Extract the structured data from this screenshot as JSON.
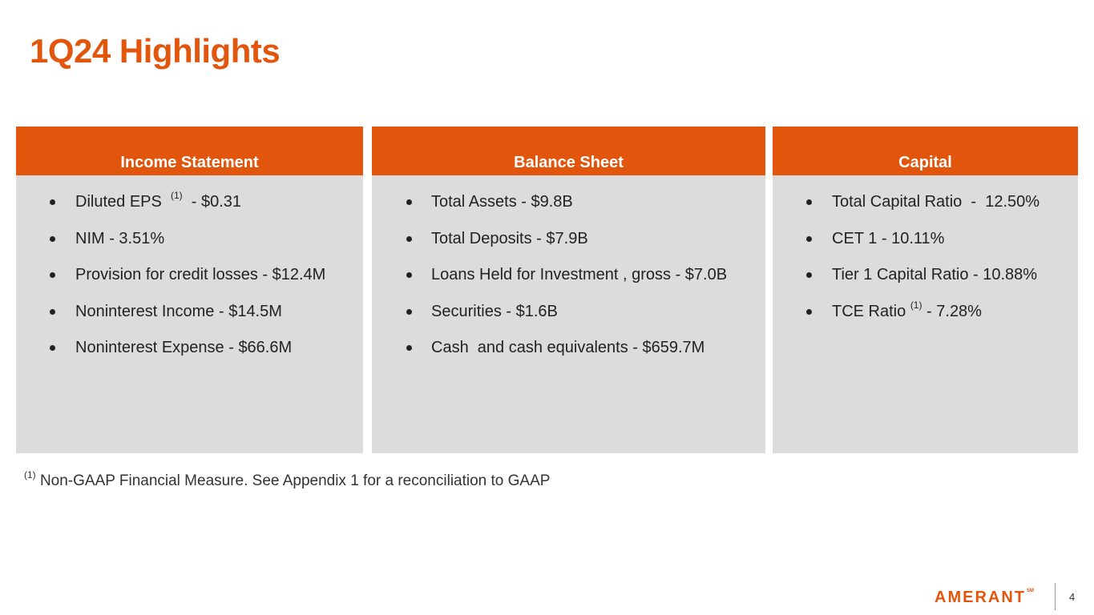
{
  "slide": {
    "title": "1Q24 Highlights",
    "page_number": "4"
  },
  "panels": {
    "income": {
      "header": "Income Statement",
      "items": [
        {
          "before": "Diluted EPS",
          "sup": "(1)",
          "after": " - $0.31"
        },
        {
          "before": "NIM - 3.51%",
          "sup": "",
          "after": ""
        },
        {
          "before": "Provision for credit losses - $12.4M",
          "sup": "",
          "after": ""
        },
        {
          "before": "Noninterest Income - $14.5M",
          "sup": "",
          "after": ""
        },
        {
          "before": "Noninterest Expense - $66.6M",
          "sup": "",
          "after": ""
        }
      ]
    },
    "balance": {
      "header": "Balance Sheet",
      "items": [
        {
          "before": "Total Assets - $9.8B",
          "sup": "",
          "after": ""
        },
        {
          "before": "Total Deposits - $7.9B",
          "sup": "",
          "after": ""
        },
        {
          "before": "Loans Held for Investment , gross - $7.0B",
          "sup": "",
          "after": ""
        },
        {
          "before": "Securities - $1.6B",
          "sup": "",
          "after": ""
        },
        {
          "before": "Cash  and cash equivalents - $659.7M",
          "sup": "",
          "after": ""
        }
      ]
    },
    "capital": {
      "header": "Capital",
      "items": [
        {
          "before": "Total Capital Ratio  -  12.50%",
          "sup": "",
          "after": ""
        },
        {
          "before": "CET 1 - 10.11%",
          "sup": "",
          "after": ""
        },
        {
          "before": "Tier 1 Capital Ratio - 10.88%",
          "sup": "",
          "after": ""
        },
        {
          "before": "TCE Ratio",
          "sup": "(1)",
          "after": " - 7.28%"
        }
      ]
    }
  },
  "footnote": {
    "marker": "(1)",
    "text": "Non-GAAP Financial Measure. See Appendix 1 for a reconciliation to GAAP"
  },
  "logo": {
    "text": "AMERANT",
    "mark": "SM"
  },
  "colors": {
    "accent": "#E2550C",
    "panel_bg": "#DCDCDC"
  }
}
